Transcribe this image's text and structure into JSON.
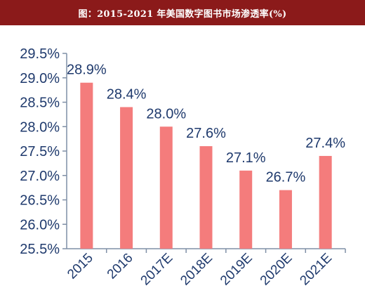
{
  "chart_data": {
    "type": "bar",
    "title": "图：2015-2021 年美国数字图书市场渗透率(%)",
    "xlabel": "",
    "ylabel": "",
    "categories": [
      "2015",
      "2016",
      "2017E",
      "2018E",
      "2019E",
      "2020E",
      "2021E"
    ],
    "values": [
      28.9,
      28.4,
      28.0,
      27.6,
      27.1,
      26.7,
      27.4
    ],
    "data_labels": [
      "28.9%",
      "28.4%",
      "28.0%",
      "27.6%",
      "27.1%",
      "26.7%",
      "27.4%"
    ],
    "ylim": [
      25.5,
      29.5
    ],
    "yticks": [
      25.5,
      26.0,
      26.5,
      27.0,
      27.5,
      28.0,
      28.5,
      29.0,
      29.5
    ],
    "ytick_labels": [
      "25.5%",
      "26.0%",
      "26.5%",
      "27.0%",
      "27.5%",
      "28.0%",
      "28.5%",
      "29.0%",
      "29.5%"
    ],
    "grid": false,
    "legend": "none",
    "bar_color": "#f47c7c",
    "axis_color": "#7f8fa6",
    "text_color": "#1f3a6d",
    "title_bar_color": "#8b1a1a"
  }
}
